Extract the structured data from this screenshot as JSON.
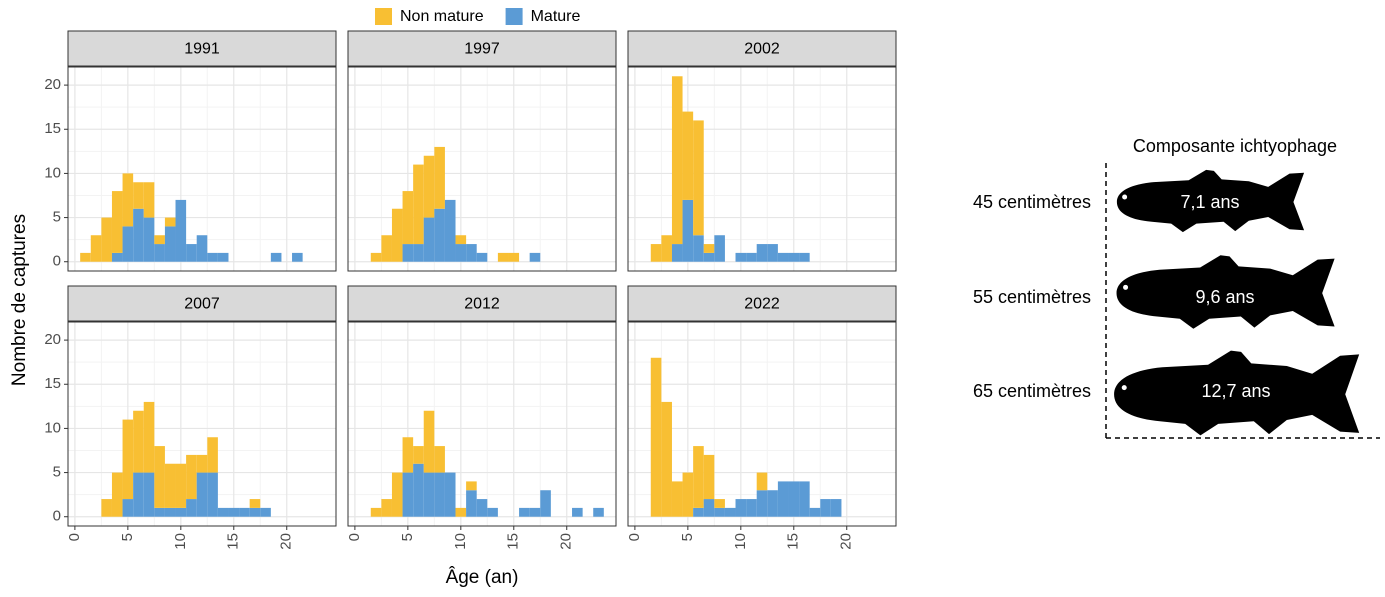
{
  "chart_data": {
    "type": "histogram",
    "xlabel": "Âge (an)",
    "ylabel": "Nombre de captures",
    "legend": "top",
    "grid": true,
    "bins": [
      0.5,
      1.5,
      2.5,
      3.5,
      4.5,
      5.5,
      6.5,
      7.5,
      8.5,
      9.5,
      10.5,
      11.5,
      12.5,
      13.5,
      14.5,
      15.5,
      16.5,
      17.5,
      18.5,
      19.5,
      20.5,
      21.5,
      22.5,
      23.5
    ],
    "xlim": [
      -0.65,
      24.65
    ],
    "xticks": [
      0,
      5,
      10,
      15,
      20
    ],
    "ylim": [
      -1.05,
      22.05
    ],
    "yticks": [
      0,
      5,
      10,
      15,
      20
    ],
    "series": [
      {
        "name": "Non mature",
        "color": "#f8bf33"
      },
      {
        "name": "Mature",
        "color": "#5b9bd5"
      }
    ],
    "facets": [
      {
        "title": "1991",
        "series": [
          {
            "values": [
              1,
              3,
              5,
              7,
              6,
              3,
              4,
              1,
              1,
              0,
              0,
              0,
              0,
              0,
              0,
              0,
              0,
              0,
              0,
              0,
              0,
              0,
              0
            ]
          },
          {
            "values": [
              0,
              0,
              0,
              1,
              4,
              6,
              5,
              2,
              4,
              7,
              2,
              3,
              1,
              1,
              0,
              0,
              0,
              0,
              1,
              0,
              1,
              0,
              0
            ]
          }
        ]
      },
      {
        "title": "1997",
        "series": [
          {
            "values": [
              0,
              1,
              3,
              6,
              6,
              9,
              7,
              7,
              0,
              1,
              0,
              0,
              0,
              1,
              1,
              0,
              0,
              0,
              0,
              0,
              0,
              0,
              0
            ]
          },
          {
            "values": [
              0,
              0,
              0,
              0,
              2,
              2,
              5,
              6,
              7,
              2,
              2,
              1,
              0,
              0,
              0,
              0,
              1,
              0,
              0,
              0,
              0,
              0,
              0
            ]
          }
        ]
      },
      {
        "title": "2002",
        "series": [
          {
            "values": [
              0,
              2,
              3,
              19,
              10,
              13,
              1,
              0,
              0,
              0,
              0,
              0,
              0,
              0,
              0,
              0,
              0,
              0,
              0,
              0,
              0,
              0,
              0
            ]
          },
          {
            "values": [
              0,
              0,
              0,
              2,
              7,
              3,
              1,
              3,
              0,
              1,
              1,
              2,
              2,
              1,
              1,
              1,
              0,
              0,
              0,
              0,
              0,
              0,
              0
            ]
          }
        ]
      },
      {
        "title": "2007",
        "series": [
          {
            "values": [
              0,
              0,
              2,
              5,
              9,
              7,
              8,
              7,
              5,
              5,
              5,
              2,
              4,
              0,
              0,
              0,
              1,
              0,
              0,
              0,
              0,
              0,
              0
            ]
          },
          {
            "values": [
              0,
              0,
              0,
              0,
              2,
              5,
              5,
              1,
              1,
              1,
              2,
              5,
              5,
              1,
              1,
              1,
              1,
              1,
              0,
              0,
              0,
              0,
              0
            ]
          }
        ]
      },
      {
        "title": "2012",
        "series": [
          {
            "values": [
              0,
              1,
              2,
              5,
              4,
              2,
              7,
              3,
              0,
              1,
              1,
              0,
              0,
              0,
              0,
              0,
              0,
              0,
              0,
              0,
              0,
              0,
              0
            ]
          },
          {
            "values": [
              0,
              0,
              0,
              0,
              5,
              6,
              5,
              5,
              5,
              0,
              3,
              2,
              1,
              0,
              0,
              1,
              1,
              3,
              0,
              0,
              1,
              0,
              1
            ]
          }
        ]
      },
      {
        "title": "2022",
        "series": [
          {
            "values": [
              0,
              18,
              13,
              4,
              5,
              7,
              5,
              1,
              0,
              0,
              0,
              2,
              0,
              0,
              0,
              0,
              0,
              0,
              0,
              0,
              0,
              0,
              0
            ]
          },
          {
            "values": [
              0,
              0,
              0,
              0,
              0,
              1,
              2,
              1,
              1,
              2,
              2,
              3,
              3,
              4,
              4,
              4,
              1,
              2,
              2,
              0,
              0,
              0,
              0
            ]
          }
        ]
      }
    ]
  },
  "fish_panel": {
    "title": "Composante ichtyophage",
    "rows": [
      {
        "length": "45 centimètres",
        "age": "7,1 ans"
      },
      {
        "length": "55 centimètres",
        "age": "9,6 ans"
      },
      {
        "length": "65 centimètres",
        "age": "12,7 ans"
      }
    ]
  }
}
